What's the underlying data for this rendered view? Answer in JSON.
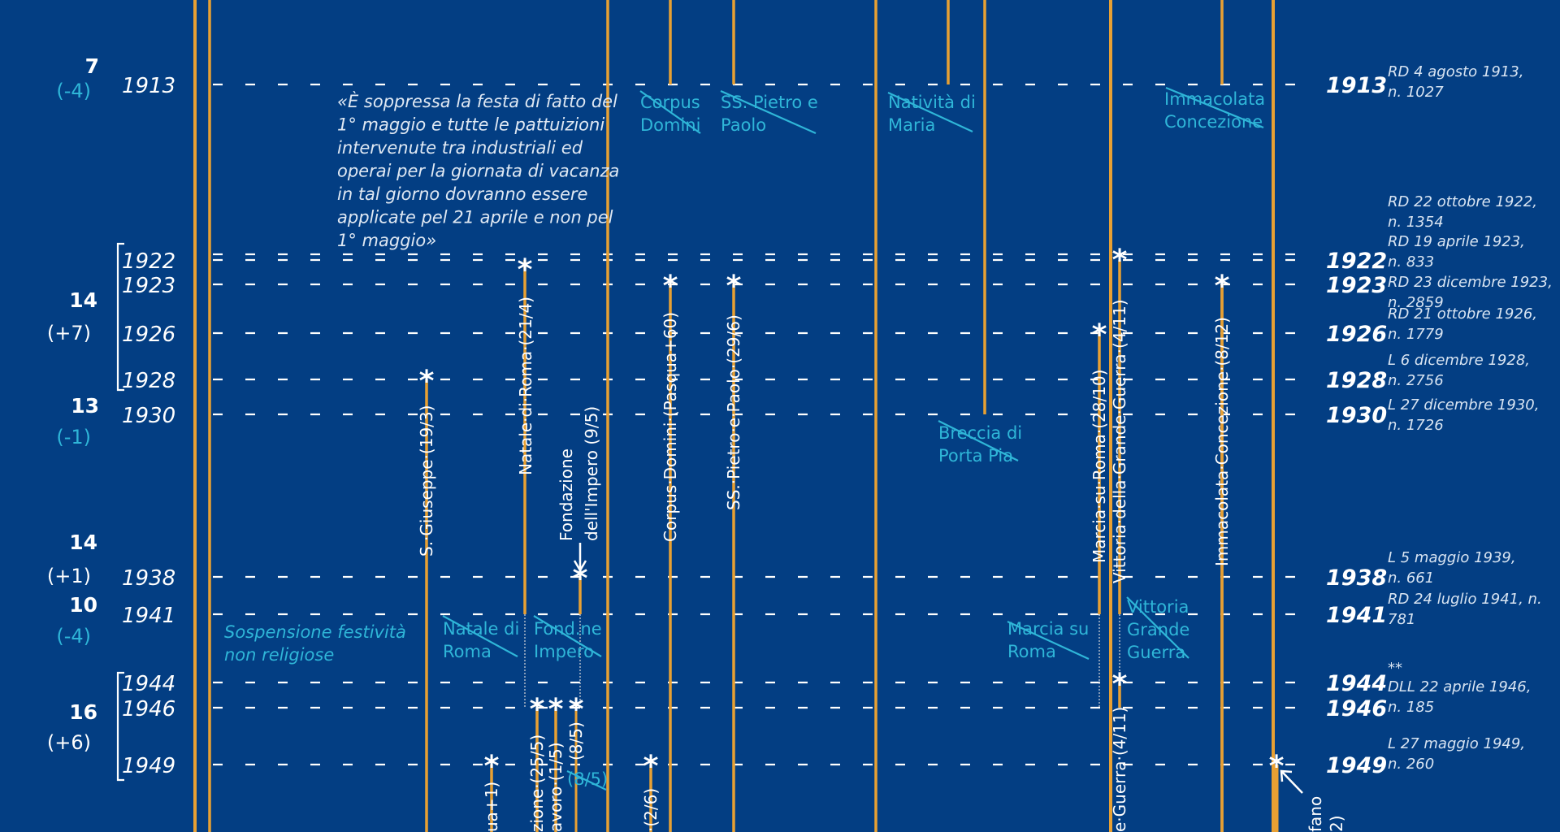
{
  "colors": {
    "background": "#033e83",
    "orange": "#e8a033",
    "white": "#ffffff",
    "cyan": "#2fb6d8",
    "law_text": "#d8e4f2"
  },
  "left_axis": {
    "groups": [
      {
        "count": "7",
        "delta": "(-4)",
        "delta_color": "cyan",
        "years": [
          "1913"
        ]
      },
      {
        "count": "14",
        "delta": "(+7)",
        "delta_color": "white",
        "years": [
          "1922",
          "1923",
          "1926",
          "1928"
        ],
        "bracket": true
      },
      {
        "count": "13",
        "delta": "(-1)",
        "delta_color": "cyan",
        "years": [
          "1930"
        ]
      },
      {
        "count": "14",
        "delta": "(+1)",
        "delta_color": "white",
        "years": [
          "1938"
        ]
      },
      {
        "count": "10",
        "delta": "(-4)",
        "delta_color": "cyan",
        "years": [
          "1941"
        ]
      },
      {
        "count": "16",
        "delta": "(+6)",
        "delta_color": "white",
        "years": [
          "1944",
          "1946",
          "1949"
        ],
        "bracket": true
      }
    ]
  },
  "rows": [
    {
      "year": "1913",
      "law": [
        "RD 4 agosto 1913,",
        "n. 1027"
      ]
    },
    {
      "year": "1922",
      "law": [
        "RD 22 ottobre 1922,",
        "n. 1354"
      ]
    },
    {
      "year": "1923",
      "law": [
        "RD 19 aprile 1923,",
        "n. 833",
        "RD 23 dicembre 1923,",
        "n. 2859"
      ]
    },
    {
      "year": "1926",
      "law": [
        "RD 21 ottobre 1926,",
        "n. 1779"
      ]
    },
    {
      "year": "1928",
      "law": [
        "L 6 dicembre 1928,",
        "n. 2756"
      ]
    },
    {
      "year": "1930",
      "law": [
        "L 27 dicembre 1930,",
        "n. 1726"
      ]
    },
    {
      "year": "1938",
      "law": [
        "L 5 maggio 1939,",
        "n. 661"
      ]
    },
    {
      "year": "1941",
      "law": [
        "RD 24 luglio 1941, n.",
        "781"
      ]
    },
    {
      "year": "1944",
      "law": [
        "**"
      ]
    },
    {
      "year": "1946",
      "law": [
        "DLL 22 aprile 1946,",
        "n. 185"
      ]
    },
    {
      "year": "1949",
      "law": [
        "L 27 maggio 1949,",
        "n. 260"
      ]
    }
  ],
  "quote": {
    "lines": [
      "«È soppressa la festa di fatto del",
      "1° maggio e tutte le pattuizioni",
      "intervenute tra industriali ed",
      "operai per la giornata di vacanza",
      "in tal giorno dovranno essere",
      "applicate pel 21 aprile e non pel",
      "1° maggio»"
    ]
  },
  "suspension_note": [
    "Sospensione festività",
    "non religiose"
  ],
  "abolished_labels": [
    {
      "id": "corpus-domini-1913",
      "lines": [
        "Corpus",
        "Domini"
      ]
    },
    {
      "id": "ss-pietro-paolo-1913",
      "lines": [
        "SS. Pietro e",
        "Paolo"
      ]
    },
    {
      "id": "nativita-maria-1913",
      "lines": [
        "Natività di",
        "Maria"
      ]
    },
    {
      "id": "immacolata-1913",
      "lines": [
        "Immacolata",
        "Concezione"
      ]
    },
    {
      "id": "breccia-porta-pia-1930",
      "lines": [
        "Breccia di",
        "Porta Pia"
      ]
    },
    {
      "id": "natale-roma-1941",
      "lines": [
        "Natale di",
        "Roma"
      ]
    },
    {
      "id": "fondazione-impero-1941",
      "lines": [
        "Fond.ne",
        "Impero"
      ]
    },
    {
      "id": "marcia-roma-1941",
      "lines": [
        "Marcia su",
        "Roma"
      ]
    },
    {
      "id": "vittoria-guerra-1941",
      "lines": [
        "Vittoria",
        "Grande",
        "Guerra"
      ]
    },
    {
      "id": "fondazione-1949",
      "lines": [
        "(8/5)"
      ]
    }
  ],
  "holiday_labels": [
    {
      "id": "s-giuseppe",
      "text": "S.·Giuseppe·(19/3)"
    },
    {
      "id": "natale-roma",
      "text": "Natale·di·Roma·(21/4)"
    },
    {
      "id": "fondazione-impero",
      "lines": [
        "Fondazione",
        "dell'Impero (9/5)"
      ]
    },
    {
      "id": "corpus-domini",
      "text": "Corpus·Domini·(Pasqua+60)"
    },
    {
      "id": "ss-pietro-paolo",
      "text": "SS.·Pietro·e·Paolo·(29/6)"
    },
    {
      "id": "marcia-roma",
      "text": "Marcia·su·Roma·(28/10)"
    },
    {
      "id": "vittoria-grande-guerra",
      "text": "Vittoria·della·Grande·Guerra·(4/11)"
    },
    {
      "id": "immacolata-concezione",
      "text": "Immacolata·Concezione·(8/12)"
    },
    {
      "id": "pasqua-plus-1",
      "text": "ua+1)"
    },
    {
      "id": "liberazione",
      "text": "zione·(25/5)"
    },
    {
      "id": "lavoro",
      "text": "avoro·(1/5)"
    },
    {
      "id": "fondazione-8-5",
      "text": "(8/5)"
    },
    {
      "id": "corpus-2-6",
      "text": "·(2/6)"
    },
    {
      "id": "vittoria-1949",
      "text": "e·Guerra·(4/11)"
    },
    {
      "id": "santo-stefano",
      "lines": [
        "fano",
        "2)"
      ]
    }
  ]
}
